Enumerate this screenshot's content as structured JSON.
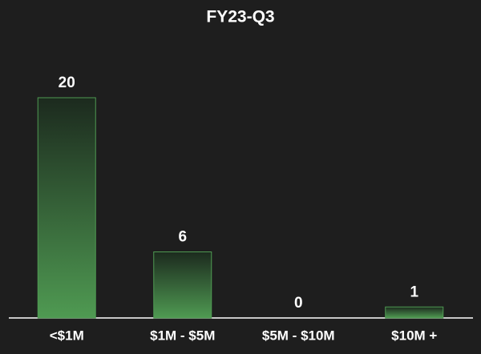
{
  "chart_data": {
    "type": "bar",
    "title": "FY23-Q3",
    "categories": [
      "<$1M",
      "$1M - $5M",
      "$5M - $10M",
      "$10M +"
    ],
    "values": [
      20,
      6,
      0,
      1
    ],
    "color": "#4f9a52"
  }
}
